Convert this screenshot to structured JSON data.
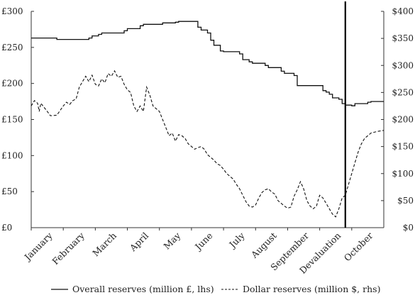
{
  "chart_data": {
    "type": "line",
    "title": "",
    "x_categories": [
      "January",
      "February",
      "March",
      "April",
      "May",
      "June",
      "July",
      "August",
      "September",
      "Devaluation",
      "October"
    ],
    "y_left": {
      "label": "",
      "ylim": [
        0,
        300
      ],
      "ticks": [
        {
          "value": 0,
          "label": "£0"
        },
        {
          "value": 50,
          "label": "£50"
        },
        {
          "value": 100,
          "label": "£100"
        },
        {
          "value": 150,
          "label": "£150"
        },
        {
          "value": 200,
          "label": "£200"
        },
        {
          "value": 250,
          "label": "£250"
        },
        {
          "value": 300,
          "label": "£300"
        }
      ]
    },
    "y_right": {
      "label": "",
      "ylim": [
        0,
        400
      ],
      "ticks": [
        {
          "value": 0,
          "label": "$0"
        },
        {
          "value": 50,
          "label": "$50"
        },
        {
          "value": 100,
          "label": "$100"
        },
        {
          "value": 150,
          "label": "$150"
        },
        {
          "value": 200,
          "label": "$200"
        },
        {
          "value": 250,
          "label": "$250"
        },
        {
          "value": 300,
          "label": "$300"
        },
        {
          "value": 350,
          "label": "$350"
        },
        {
          "value": 400,
          "label": "$400"
        }
      ]
    },
    "x_domain": [
      0,
      11
    ],
    "devaluation_x": 9.8,
    "legend_position": "bottom",
    "grid": false,
    "series": [
      {
        "name": "Overall reserves (million £, lhs)",
        "axis": "left",
        "style": "solid",
        "x": [
          0,
          0.7,
          0.8,
          1.8,
          1.9,
          2.1,
          2.2,
          2.9,
          3.0,
          3.4,
          3.5,
          4.0,
          4.1,
          4.5,
          4.6,
          4.7,
          5.2,
          5.3,
          5.5,
          5.6,
          5.7,
          5.9,
          6.0,
          6.5,
          6.6,
          6.8,
          6.9,
          7.3,
          7.4,
          7.8,
          7.9,
          8.2,
          8.3,
          9.0,
          9.1,
          9.2,
          9.3,
          9.4,
          9.5,
          9.6,
          9.7,
          9.8,
          10.0,
          10.1,
          10.5,
          10.6,
          11.0
        ],
        "values": [
          263,
          263,
          261,
          263,
          266,
          268,
          270,
          273,
          276,
          280,
          282,
          282,
          284,
          285,
          286,
          286,
          278,
          274,
          270,
          260,
          253,
          245,
          244,
          241,
          233,
          230,
          228,
          225,
          222,
          217,
          214,
          211,
          197,
          197,
          190,
          188,
          185,
          180,
          180,
          178,
          172,
          170,
          169,
          172,
          174,
          175,
          175
        ]
      },
      {
        "name": "Dollar reserves (million $, rhs)",
        "axis": "right",
        "style": "dashed",
        "x": [
          0,
          0.1,
          0.2,
          0.25,
          0.3,
          0.5,
          0.6,
          0.8,
          1.0,
          1.1,
          1.2,
          1.3,
          1.4,
          1.5,
          1.7,
          1.8,
          1.9,
          2.0,
          2.1,
          2.2,
          2.3,
          2.4,
          2.5,
          2.6,
          2.7,
          2.8,
          2.9,
          3.0,
          3.1,
          3.2,
          3.3,
          3.4,
          3.5,
          3.6,
          3.7,
          3.8,
          3.9,
          4.0,
          4.1,
          4.2,
          4.3,
          4.4,
          4.5,
          4.6,
          4.7,
          4.8,
          4.9,
          5.0,
          5.1,
          5.2,
          5.3,
          5.4,
          5.5,
          5.6,
          5.7,
          5.8,
          5.9,
          6.0,
          6.1,
          6.2,
          6.3,
          6.4,
          6.5,
          6.6,
          6.7,
          6.8,
          6.9,
          7.0,
          7.1,
          7.2,
          7.3,
          7.4,
          7.5,
          7.6,
          7.7,
          7.8,
          7.9,
          8.0,
          8.1,
          8.2,
          8.3,
          8.4,
          8.5,
          8.6,
          8.7,
          8.8,
          8.9,
          9.0,
          9.1,
          9.2,
          9.3,
          9.4,
          9.5,
          9.6,
          9.7,
          9.8,
          9.9,
          10.0,
          10.1,
          10.2,
          10.3,
          10.4,
          10.5,
          10.6,
          10.8,
          11.0
        ],
        "values": [
          225,
          235,
          230,
          215,
          230,
          215,
          207,
          208,
          225,
          232,
          228,
          235,
          238,
          260,
          280,
          270,
          282,
          265,
          262,
          275,
          268,
          285,
          280,
          290,
          278,
          280,
          265,
          255,
          250,
          225,
          215,
          225,
          215,
          260,
          245,
          225,
          220,
          215,
          200,
          185,
          170,
          175,
          160,
          172,
          170,
          165,
          155,
          150,
          145,
          148,
          150,
          145,
          135,
          130,
          125,
          118,
          115,
          108,
          100,
          95,
          90,
          80,
          72,
          60,
          48,
          40,
          38,
          42,
          55,
          65,
          70,
          72,
          66,
          62,
          50,
          45,
          40,
          36,
          38,
          58,
          70,
          85,
          72,
          50,
          40,
          35,
          40,
          60,
          55,
          45,
          35,
          25,
          20,
          35,
          55,
          60,
          80,
          100,
          120,
          140,
          155,
          165,
          170,
          175,
          178,
          180
        ]
      }
    ]
  }
}
